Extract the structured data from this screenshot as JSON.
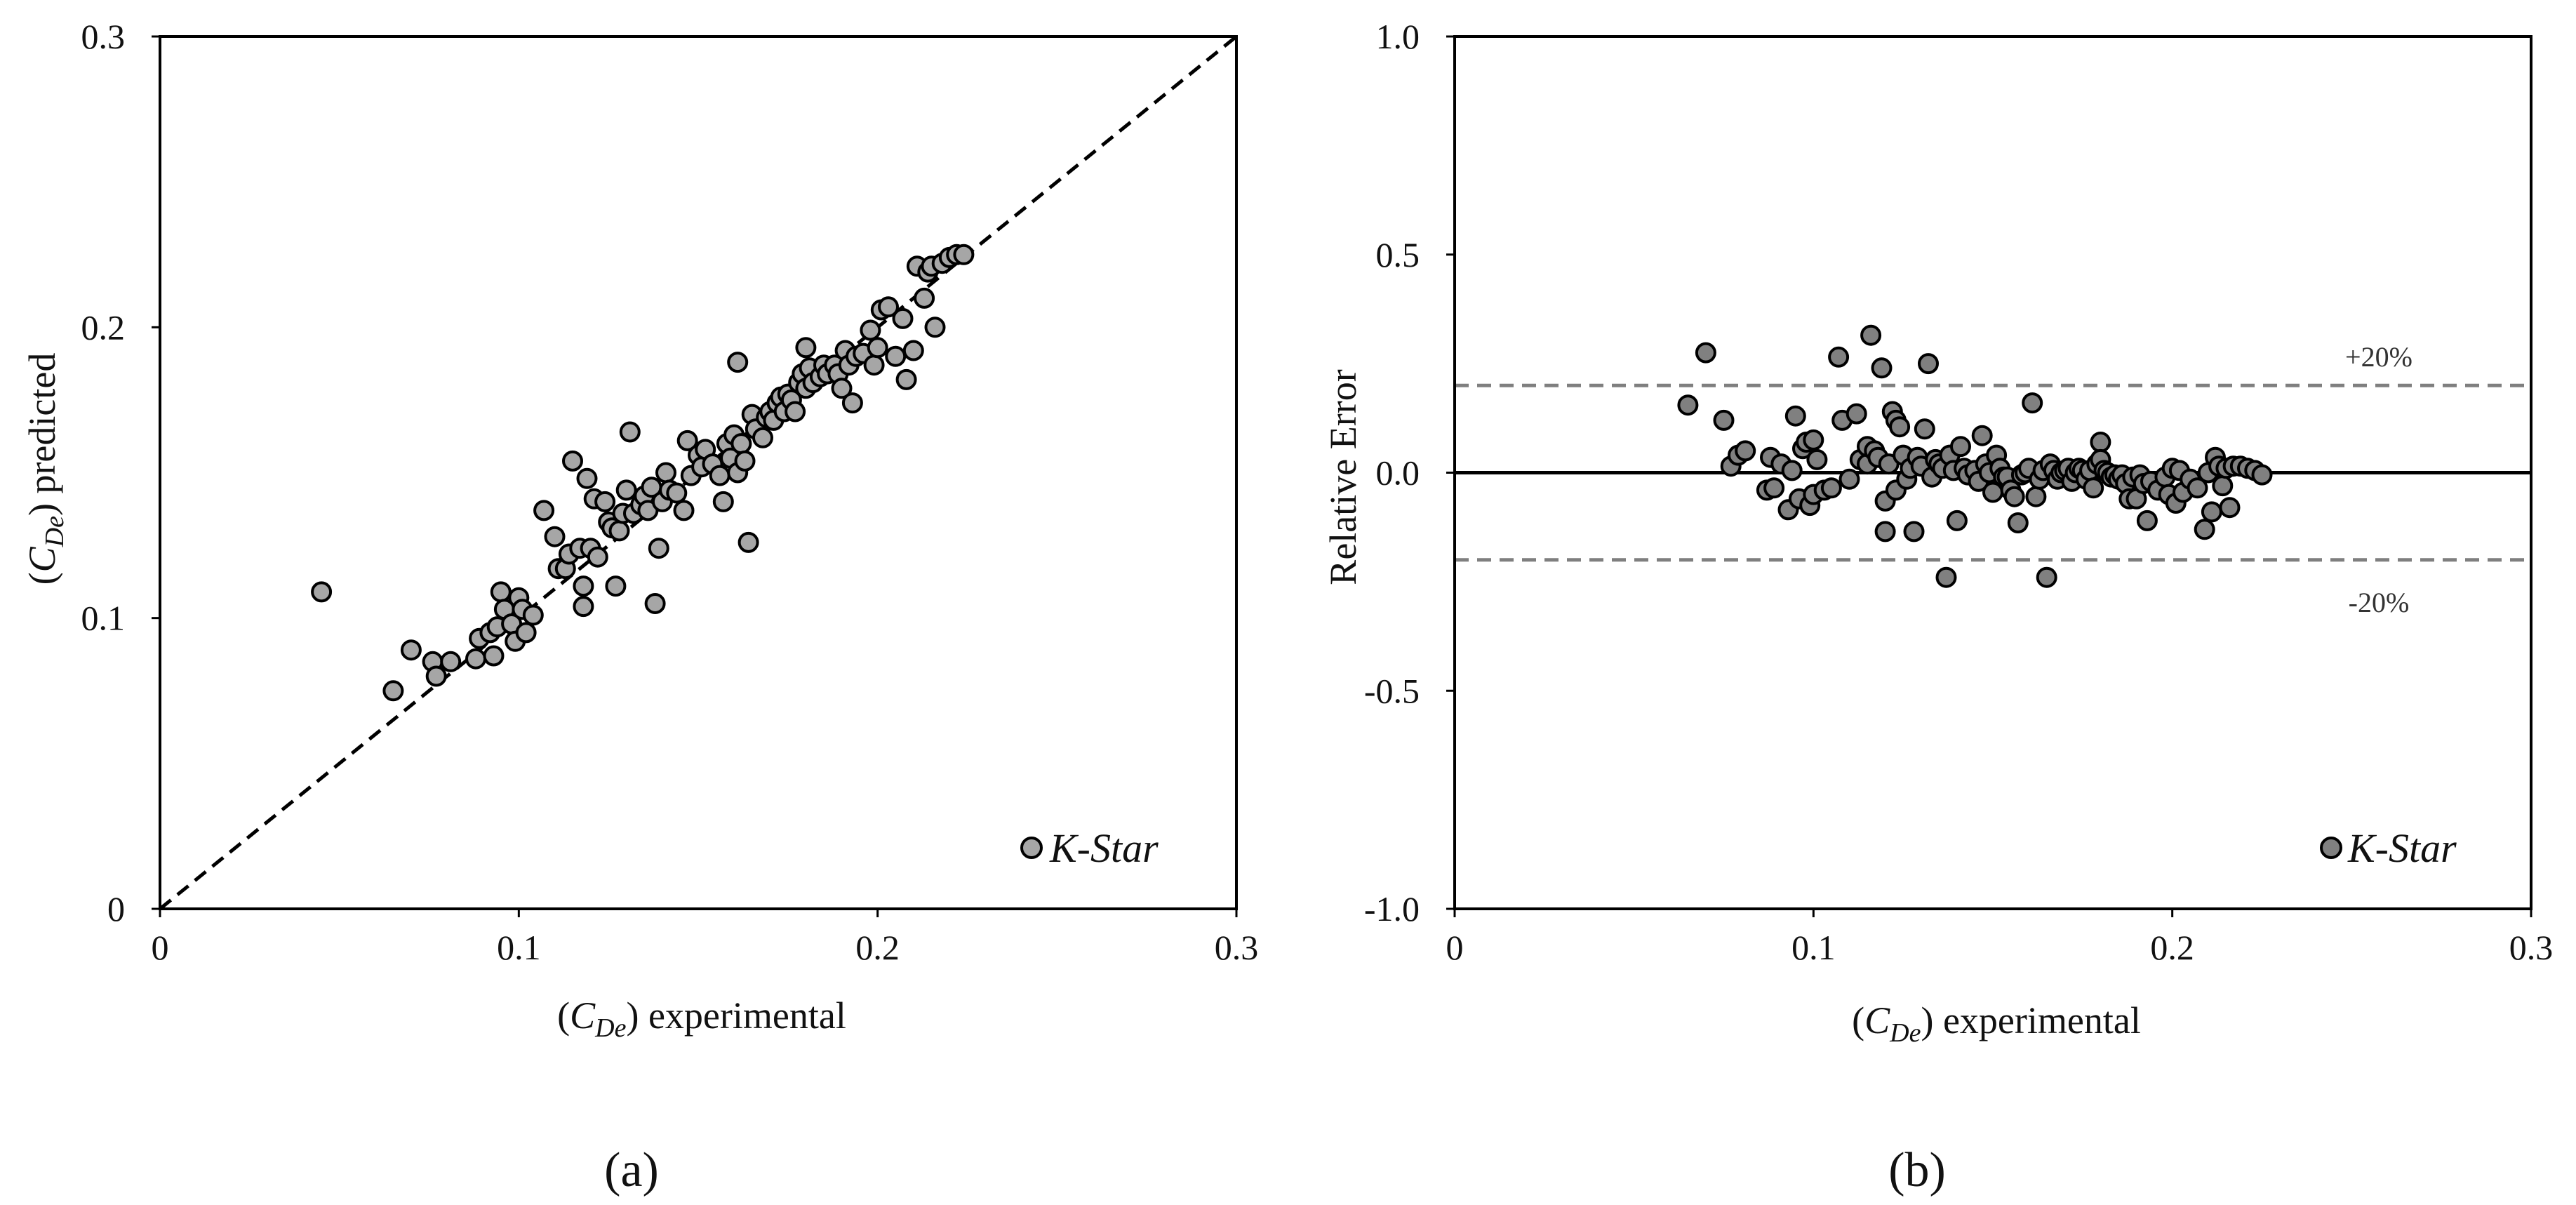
{
  "figure": {
    "panel_a_caption": "(a)",
    "panel_b_caption": "(b)"
  },
  "chart_data": [
    {
      "id": "a",
      "type": "scatter",
      "xlabel": {
        "open": "(",
        "symbol": "C",
        "subscript": "De",
        "close": ")",
        "suffix": " experimental"
      },
      "ylabel": {
        "open": "(",
        "symbol": "C",
        "subscript": "De",
        "close": ")",
        "suffix": " predicted"
      },
      "xlim": [
        0,
        0.3
      ],
      "ylim": [
        0,
        0.3
      ],
      "xticks": [
        0,
        0.1,
        0.2,
        0.3
      ],
      "yticks": [
        0,
        0.1,
        0.2,
        0.3
      ],
      "xtick_labels": [
        "0",
        "0.1",
        "0.2",
        "0.3"
      ],
      "ytick_labels": [
        "0",
        "0.1",
        "0.2",
        "0.3"
      ],
      "reference_line": {
        "from": [
          0,
          0
        ],
        "to": [
          0.3,
          0.3
        ],
        "style": "dashed",
        "color": "#000000"
      },
      "legend": {
        "label": "K-Star",
        "placement": "bottom-right"
      },
      "marker": {
        "fill": "#a6a6a6",
        "stroke": "#000000"
      },
      "series": [
        {
          "name": "K-Star",
          "points": [
            [
              0.045,
              0.109
            ],
            [
              0.065,
              0.075
            ],
            [
              0.07,
              0.089
            ],
            [
              0.076,
              0.085
            ],
            [
              0.077,
              0.08
            ],
            [
              0.081,
              0.085
            ],
            [
              0.088,
              0.086
            ],
            [
              0.089,
              0.093
            ],
            [
              0.092,
              0.095
            ],
            [
              0.093,
              0.087
            ],
            [
              0.094,
              0.097
            ],
            [
              0.095,
              0.109
            ],
            [
              0.096,
              0.103
            ],
            [
              0.098,
              0.098
            ],
            [
              0.099,
              0.092
            ],
            [
              0.1,
              0.107
            ],
            [
              0.101,
              0.103
            ],
            [
              0.102,
              0.095
            ],
            [
              0.104,
              0.101
            ],
            [
              0.107,
              0.137
            ],
            [
              0.11,
              0.128
            ],
            [
              0.111,
              0.117
            ],
            [
              0.113,
              0.117
            ],
            [
              0.114,
              0.122
            ],
            [
              0.115,
              0.154
            ],
            [
              0.117,
              0.124
            ],
            [
              0.118,
              0.111
            ],
            [
              0.118,
              0.104
            ],
            [
              0.119,
              0.148
            ],
            [
              0.12,
              0.124
            ],
            [
              0.121,
              0.141
            ],
            [
              0.122,
              0.121
            ],
            [
              0.124,
              0.14
            ],
            [
              0.125,
              0.133
            ],
            [
              0.126,
              0.131
            ],
            [
              0.127,
              0.111
            ],
            [
              0.128,
              0.13
            ],
            [
              0.129,
              0.136
            ],
            [
              0.13,
              0.144
            ],
            [
              0.131,
              0.164
            ],
            [
              0.132,
              0.136
            ],
            [
              0.134,
              0.139
            ],
            [
              0.135,
              0.142
            ],
            [
              0.136,
              0.137
            ],
            [
              0.137,
              0.145
            ],
            [
              0.138,
              0.105
            ],
            [
              0.139,
              0.124
            ],
            [
              0.14,
              0.14
            ],
            [
              0.141,
              0.15
            ],
            [
              0.142,
              0.144
            ],
            [
              0.144,
              0.143
            ],
            [
              0.146,
              0.137
            ],
            [
              0.147,
              0.161
            ],
            [
              0.148,
              0.149
            ],
            [
              0.15,
              0.156
            ],
            [
              0.151,
              0.152
            ],
            [
              0.152,
              0.158
            ],
            [
              0.154,
              0.153
            ],
            [
              0.156,
              0.149
            ],
            [
              0.157,
              0.14
            ],
            [
              0.158,
              0.16
            ],
            [
              0.159,
              0.155
            ],
            [
              0.16,
              0.163
            ],
            [
              0.161,
              0.188
            ],
            [
              0.161,
              0.15
            ],
            [
              0.162,
              0.16
            ],
            [
              0.163,
              0.154
            ],
            [
              0.164,
              0.126
            ],
            [
              0.165,
              0.17
            ],
            [
              0.166,
              0.165
            ],
            [
              0.168,
              0.162
            ],
            [
              0.169,
              0.169
            ],
            [
              0.17,
              0.171
            ],
            [
              0.171,
              0.168
            ],
            [
              0.172,
              0.174
            ],
            [
              0.173,
              0.176
            ],
            [
              0.174,
              0.171
            ],
            [
              0.175,
              0.177
            ],
            [
              0.176,
              0.175
            ],
            [
              0.177,
              0.171
            ],
            [
              0.178,
              0.181
            ],
            [
              0.179,
              0.184
            ],
            [
              0.18,
              0.179
            ],
            [
              0.18,
              0.193
            ],
            [
              0.181,
              0.186
            ],
            [
              0.182,
              0.181
            ],
            [
              0.184,
              0.183
            ],
            [
              0.185,
              0.187
            ],
            [
              0.186,
              0.184
            ],
            [
              0.188,
              0.187
            ],
            [
              0.189,
              0.184
            ],
            [
              0.19,
              0.179
            ],
            [
              0.191,
              0.192
            ],
            [
              0.192,
              0.187
            ],
            [
              0.193,
              0.174
            ],
            [
              0.194,
              0.19
            ],
            [
              0.196,
              0.191
            ],
            [
              0.198,
              0.199
            ],
            [
              0.199,
              0.187
            ],
            [
              0.2,
              0.193
            ],
            [
              0.201,
              0.206
            ],
            [
              0.203,
              0.207
            ],
            [
              0.205,
              0.19
            ],
            [
              0.207,
              0.203
            ],
            [
              0.208,
              0.182
            ],
            [
              0.21,
              0.192
            ],
            [
              0.211,
              0.221
            ],
            [
              0.213,
              0.21
            ],
            [
              0.214,
              0.219
            ],
            [
              0.215,
              0.221
            ],
            [
              0.216,
              0.2
            ],
            [
              0.218,
              0.222
            ],
            [
              0.22,
              0.224
            ],
            [
              0.222,
              0.225
            ],
            [
              0.224,
              0.225
            ]
          ]
        }
      ]
    },
    {
      "id": "b",
      "type": "scatter",
      "xlabel": {
        "open": "(",
        "symbol": "C",
        "subscript": "De",
        "close": ")",
        "suffix": " experimental"
      },
      "ylabel": "Relative Error",
      "xlim": [
        0,
        0.3
      ],
      "ylim": [
        -1.0,
        1.0
      ],
      "xticks": [
        0,
        0.1,
        0.2,
        0.3
      ],
      "yticks": [
        1.0,
        0.5,
        0.0,
        -0.5,
        -1.0
      ],
      "xtick_labels": [
        "0",
        "0.1",
        "0.2",
        "0.3"
      ],
      "ytick_labels": [
        "1.0",
        "0.5",
        "0.0",
        "-0.5",
        "-1.0"
      ],
      "zero_line": {
        "y": 0.0,
        "style": "solid",
        "color": "#000000"
      },
      "error_bands": [
        {
          "y": 0.2,
          "label": "+20%",
          "style": "dashed",
          "color": "#7f7f7f"
        },
        {
          "y": -0.2,
          "label": "-20%",
          "style": "dashed",
          "color": "#7f7f7f"
        }
      ],
      "legend": {
        "label": "K-Star",
        "placement": "bottom-right"
      },
      "marker": {
        "fill": "#808080",
        "stroke": "#000000"
      },
      "series": [
        {
          "name": "K-Star",
          "points": [
            [
              0.065,
              0.155
            ],
            [
              0.07,
              0.275
            ],
            [
              0.075,
              0.12
            ],
            [
              0.077,
              0.015
            ],
            [
              0.079,
              0.04
            ],
            [
              0.081,
              0.05
            ],
            [
              0.087,
              -0.04
            ],
            [
              0.088,
              0.035
            ],
            [
              0.089,
              -0.035
            ],
            [
              0.091,
              0.02
            ],
            [
              0.093,
              -0.085
            ],
            [
              0.094,
              0.005
            ],
            [
              0.095,
              0.13
            ],
            [
              0.096,
              -0.06
            ],
            [
              0.097,
              0.055
            ],
            [
              0.098,
              0.07
            ],
            [
              0.099,
              -0.075
            ],
            [
              0.1,
              0.075
            ],
            [
              0.1,
              -0.05
            ],
            [
              0.101,
              0.03
            ],
            [
              0.103,
              -0.04
            ],
            [
              0.105,
              -0.035
            ],
            [
              0.107,
              0.265
            ],
            [
              0.108,
              0.12
            ],
            [
              0.11,
              -0.015
            ],
            [
              0.112,
              0.135
            ],
            [
              0.113,
              0.03
            ],
            [
              0.115,
              0.02
            ],
            [
              0.115,
              0.06
            ],
            [
              0.116,
              0.315
            ],
            [
              0.117,
              0.05
            ],
            [
              0.118,
              0.035
            ],
            [
              0.119,
              0.24
            ],
            [
              0.12,
              -0.135
            ],
            [
              0.12,
              -0.065
            ],
            [
              0.121,
              0.02
            ],
            [
              0.122,
              0.14
            ],
            [
              0.123,
              -0.04
            ],
            [
              0.123,
              0.12
            ],
            [
              0.124,
              0.105
            ],
            [
              0.125,
              0.04
            ],
            [
              0.126,
              -0.015
            ],
            [
              0.127,
              0.01
            ],
            [
              0.128,
              -0.135
            ],
            [
              0.129,
              0.035
            ],
            [
              0.13,
              0.015
            ],
            [
              0.131,
              0.1
            ],
            [
              0.132,
              0.25
            ],
            [
              0.133,
              -0.01
            ],
            [
              0.134,
              0.03
            ],
            [
              0.135,
              0.02
            ],
            [
              0.136,
              0.01
            ],
            [
              0.137,
              -0.24
            ],
            [
              0.138,
              0.04
            ],
            [
              0.139,
              0.005
            ],
            [
              0.14,
              -0.11
            ],
            [
              0.141,
              0.06
            ],
            [
              0.142,
              0.01
            ],
            [
              0.143,
              -0.005
            ],
            [
              0.145,
              0.005
            ],
            [
              0.146,
              -0.02
            ],
            [
              0.147,
              0.085
            ],
            [
              0.148,
              0.02
            ],
            [
              0.149,
              0.0
            ],
            [
              0.15,
              -0.045
            ],
            [
              0.151,
              0.04
            ],
            [
              0.152,
              0.01
            ],
            [
              0.153,
              -0.01
            ],
            [
              0.154,
              -0.01
            ],
            [
              0.155,
              -0.04
            ],
            [
              0.156,
              -0.055
            ],
            [
              0.157,
              -0.115
            ],
            [
              0.158,
              -0.005
            ],
            [
              0.159,
              0.0
            ],
            [
              0.16,
              0.01
            ],
            [
              0.161,
              0.16
            ],
            [
              0.162,
              -0.055
            ],
            [
              0.163,
              -0.015
            ],
            [
              0.164,
              0.005
            ],
            [
              0.165,
              -0.24
            ],
            [
              0.166,
              0.02
            ],
            [
              0.167,
              0.005
            ],
            [
              0.168,
              -0.015
            ],
            [
              0.169,
              0.0
            ],
            [
              0.17,
              0.005
            ],
            [
              0.171,
              0.01
            ],
            [
              0.172,
              -0.02
            ],
            [
              0.173,
              0.0
            ],
            [
              0.174,
              0.01
            ],
            [
              0.175,
              0.005
            ],
            [
              0.176,
              -0.015
            ],
            [
              0.177,
              0.005
            ],
            [
              0.178,
              -0.035
            ],
            [
              0.179,
              0.02
            ],
            [
              0.18,
              0.07
            ],
            [
              0.18,
              0.03
            ],
            [
              0.181,
              0.005
            ],
            [
              0.182,
              0.0
            ],
            [
              0.183,
              -0.01
            ],
            [
              0.184,
              -0.005
            ],
            [
              0.185,
              -0.015
            ],
            [
              0.186,
              -0.005
            ],
            [
              0.187,
              -0.025
            ],
            [
              0.188,
              -0.06
            ],
            [
              0.189,
              -0.01
            ],
            [
              0.19,
              -0.06
            ],
            [
              0.191,
              -0.005
            ],
            [
              0.192,
              -0.025
            ],
            [
              0.193,
              -0.11
            ],
            [
              0.194,
              -0.02
            ],
            [
              0.196,
              -0.04
            ],
            [
              0.198,
              -0.01
            ],
            [
              0.199,
              -0.05
            ],
            [
              0.2,
              0.01
            ],
            [
              0.201,
              -0.07
            ],
            [
              0.202,
              0.005
            ],
            [
              0.203,
              -0.045
            ],
            [
              0.205,
              -0.015
            ],
            [
              0.207,
              -0.035
            ],
            [
              0.209,
              -0.13
            ],
            [
              0.21,
              0.0
            ],
            [
              0.211,
              -0.09
            ],
            [
              0.212,
              0.035
            ],
            [
              0.213,
              0.015
            ],
            [
              0.214,
              -0.03
            ],
            [
              0.215,
              0.01
            ],
            [
              0.216,
              -0.08
            ],
            [
              0.217,
              0.015
            ],
            [
              0.219,
              0.015
            ],
            [
              0.221,
              0.01
            ],
            [
              0.223,
              0.005
            ],
            [
              0.225,
              -0.005
            ]
          ]
        }
      ]
    }
  ]
}
